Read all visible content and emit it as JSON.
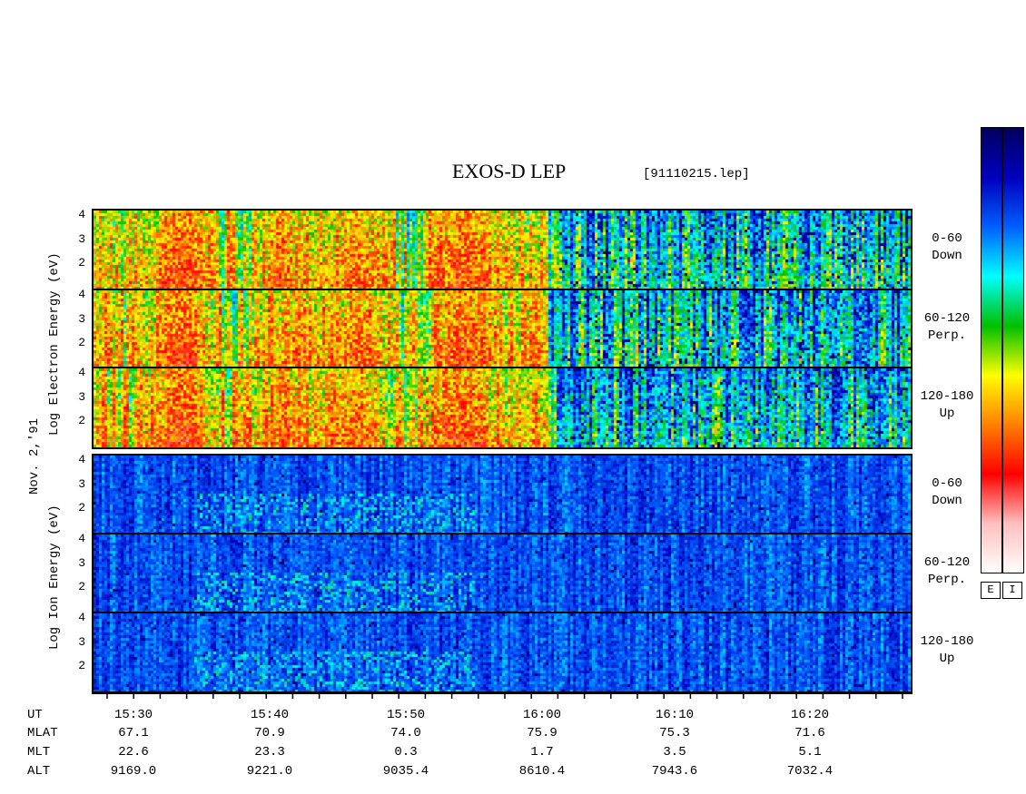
{
  "header": {
    "title": "EXOS-D LEP",
    "file": "[91110215.lep]"
  },
  "side_labels": {
    "electron": "Log  Electron  Energy (eV)",
    "ion": "Log  Ion  Energy (eV)",
    "date": "Nov. 2,'91"
  },
  "y_ticks": [
    "4",
    "3",
    "2"
  ],
  "panels": [
    {
      "group": "electron",
      "pitch": "0-60",
      "dir": "Down"
    },
    {
      "group": "electron",
      "pitch": "60-120",
      "dir": "Perp."
    },
    {
      "group": "electron",
      "pitch": "120-180",
      "dir": "Up"
    },
    {
      "group": "ion",
      "pitch": "0-60",
      "dir": "Down"
    },
    {
      "group": "ion",
      "pitch": "60-120",
      "dir": "Perp."
    },
    {
      "group": "ion",
      "pitch": "120-180",
      "dir": "Up"
    }
  ],
  "axis": {
    "row_labels": [
      "UT",
      "MLAT",
      "MLT",
      "ALT"
    ],
    "ut": [
      "15:30",
      "15:40",
      "15:50",
      "16:00",
      "16:10",
      "16:20"
    ],
    "mlat": [
      "67.1",
      "70.9",
      "74.0",
      "75.9",
      "75.3",
      "71.6"
    ],
    "mlt": [
      "22.6",
      "23.3",
      "0.3",
      "1.7",
      "3.5",
      "5.1"
    ],
    "alt": [
      "9169.0",
      "9221.0",
      "9035.4",
      "8610.4",
      "7943.6",
      "7032.4"
    ]
  },
  "colorbar": {
    "labels": [
      "E",
      "I"
    ]
  },
  "colors": {
    "scale": [
      "#ffffff",
      "#ffc0c0",
      "#ff0000",
      "#ff8000",
      "#ffff00",
      "#00c000",
      "#00ffff",
      "#0060ff",
      "#0000c0",
      "#000060"
    ]
  },
  "chart_data": {
    "type": "heatmap",
    "title": "EXOS-D LEP",
    "ylabel": "Log Energy (eV)",
    "ylim": [
      1,
      4
    ],
    "y_ticks": [
      2,
      3,
      4
    ],
    "xlabel": "UT",
    "x_ticks": [
      "15:30",
      "15:40",
      "15:50",
      "16:00",
      "16:10",
      "16:20"
    ],
    "x_range": [
      "15:25",
      "16:27"
    ],
    "series": [
      {
        "name": "Electron 0-60 Down"
      },
      {
        "name": "Electron 60-120 Perp."
      },
      {
        "name": "Electron 120-180 Up"
      },
      {
        "name": "Ion 0-60 Down"
      },
      {
        "name": "Ion 60-120 Perp."
      },
      {
        "name": "Ion 120-180 Up"
      }
    ]
  }
}
